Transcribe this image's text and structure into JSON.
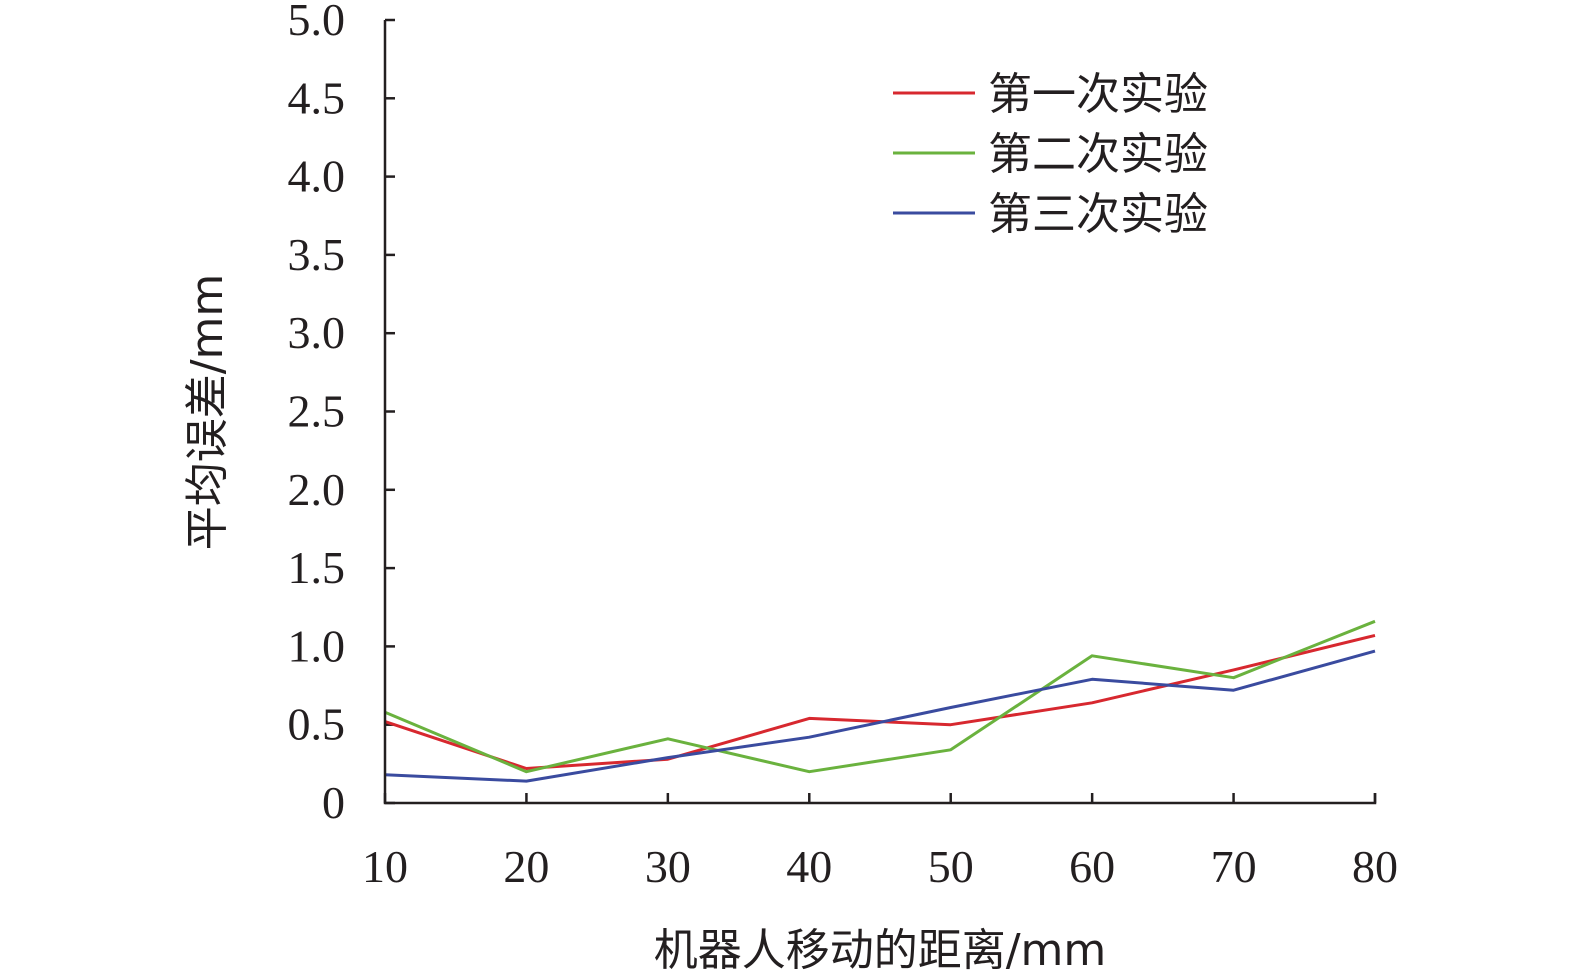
{
  "chart_data": {
    "type": "line",
    "title": "",
    "xlabel": "机器人移动的距离/mm",
    "ylabel": "平均误差/mm",
    "x": [
      10,
      20,
      30,
      40,
      50,
      60,
      70,
      80
    ],
    "xlim": [
      10,
      80
    ],
    "ylim": [
      0,
      5.0
    ],
    "x_ticks": [
      "10",
      "20",
      "30",
      "40",
      "50",
      "60",
      "70",
      "80"
    ],
    "y_ticks": [
      "0",
      "0.5",
      "1.0",
      "1.5",
      "2.0",
      "2.5",
      "3.0",
      "3.5",
      "4.0",
      "4.5",
      "5.0"
    ],
    "grid": false,
    "legend_position": "top-right",
    "series": [
      {
        "name": "第一次实验",
        "color": "#d7282f",
        "values": [
          0.52,
          0.22,
          0.28,
          0.54,
          0.5,
          0.64,
          0.85,
          1.07
        ]
      },
      {
        "name": "第二次实验",
        "color": "#6ab23e",
        "values": [
          0.58,
          0.2,
          0.41,
          0.2,
          0.34,
          0.94,
          0.8,
          1.16
        ]
      },
      {
        "name": "第三次实验",
        "color": "#3a4b9f",
        "values": [
          0.18,
          0.14,
          0.29,
          0.42,
          0.61,
          0.79,
          0.72,
          0.97
        ]
      }
    ]
  }
}
